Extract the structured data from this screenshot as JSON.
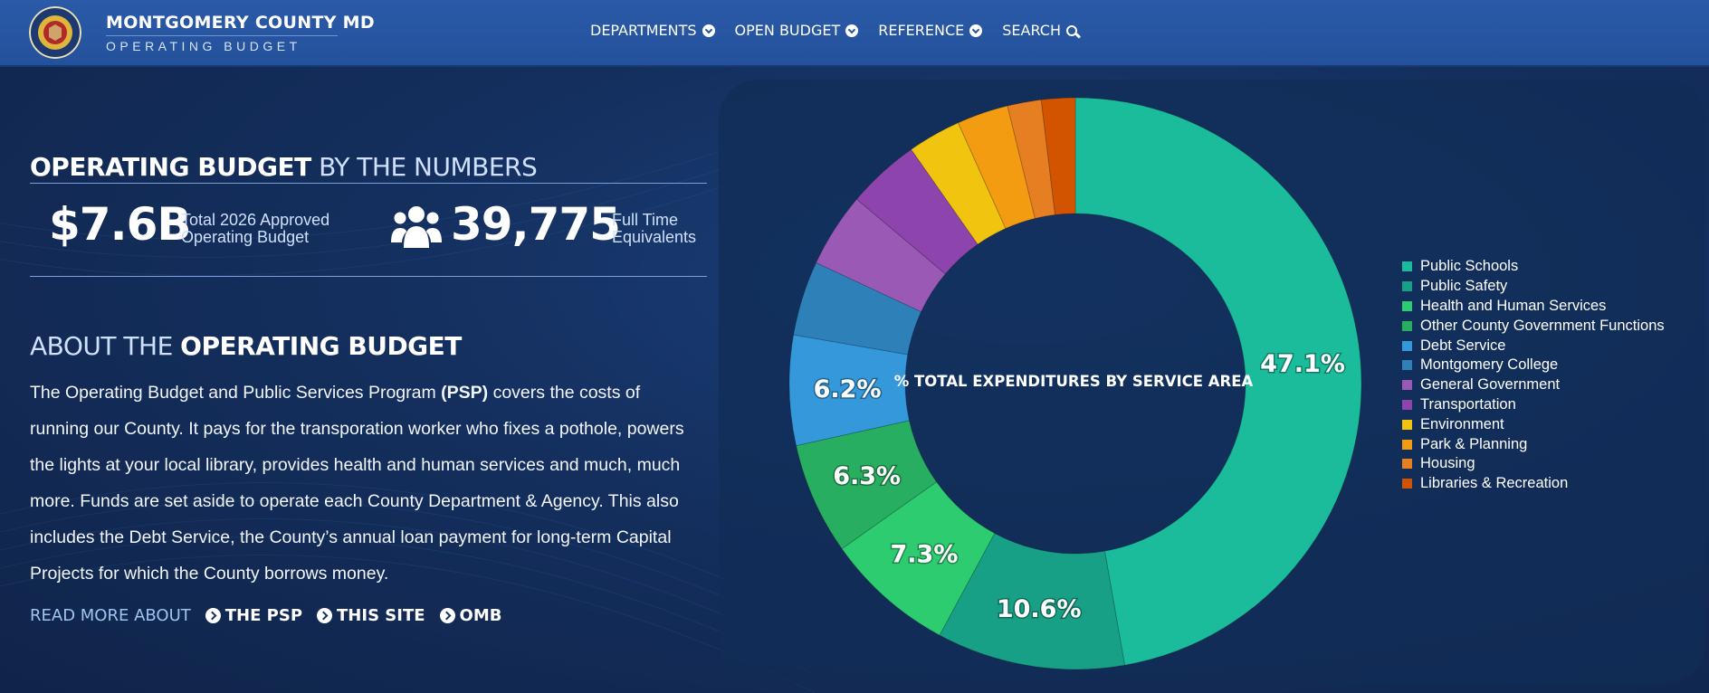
{
  "header": {
    "seal_text_top": "MONTGOMERY COUNTY",
    "seal_text_bottom": "MARYLAND",
    "title": "MONTGOMERY COUNTY MD",
    "subtitle": "OPERATING BUDGET",
    "nav": [
      {
        "label": "DEPARTMENTS",
        "icon": "chevron-down-circle-icon"
      },
      {
        "label": "OPEN BUDGET",
        "icon": "chevron-down-circle-icon"
      },
      {
        "label": "REFERENCE",
        "icon": "chevron-down-circle-icon"
      },
      {
        "label": "SEARCH",
        "icon": "search-icon"
      }
    ]
  },
  "numbers": {
    "heading_bold": "OPERATING BUDGET",
    "heading_light": "BY THE NUMBERS",
    "budget_value": "$7.6B",
    "budget_label_1": "Total 2026 Approved",
    "budget_label_2": "Operating Budget",
    "fte_icon": "users-icon",
    "fte_value": "39,775",
    "fte_label_1": "Full Time",
    "fte_label_2": "Equivalents"
  },
  "about": {
    "heading_light": "ABOUT THE",
    "heading_bold": "OPERATING BUDGET",
    "text_before": "The Operating Budget and Public Services Program ",
    "text_bold": "(PSP)",
    "text_after": " covers the costs of running our County. It pays for the transporation worker who fixes a pothole, powers the lights at your local library, provides health and human services and much, much more. Funds are set aside to operate each County Department & Agency. This also includes the Debt Service, the County’s annual loan payment for long-term Capital Projects for which the County borrows money.",
    "read_more_label": "READ MORE ABOUT",
    "links": [
      "THE PSP",
      "THIS SITE",
      "OMB"
    ]
  },
  "chart_data": {
    "type": "pie",
    "title": "% TOTAL EXPENDITURES BY SERVICE AREA",
    "legend_position": "right",
    "categories": [
      "Public Schools",
      "Public Safety",
      "Health and Human Services",
      "Other County Government Functions",
      "Debt Service",
      "Montgomery College",
      "General Government",
      "Transportation",
      "Environment",
      "Park & Planning",
      "Housing",
      "Libraries & Recreation"
    ],
    "values": [
      47.1,
      10.6,
      7.3,
      6.3,
      6.2,
      4.2,
      4.2,
      4.1,
      3.0,
      2.9,
      1.9,
      1.9
    ],
    "colors": [
      "#1abc9c",
      "#17a085",
      "#2ecc71",
      "#27ae60",
      "#3498db",
      "#2e80b9",
      "#9b59b6",
      "#8e44ad",
      "#f1c40f",
      "#f39c12",
      "#e67e22",
      "#d35400"
    ],
    "data_labels": [
      "47.1%",
      "10.6%",
      "7.3%",
      "6.3%",
      "6.2%",
      "",
      "",
      "",
      "",
      "",
      "",
      ""
    ]
  }
}
